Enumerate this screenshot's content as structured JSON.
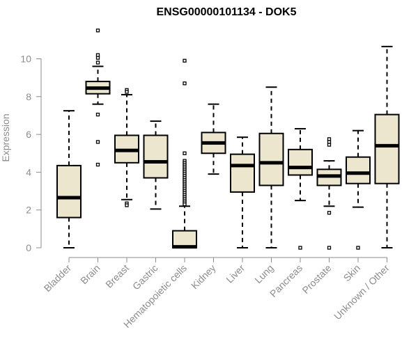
{
  "chart_data": {
    "type": "boxplot",
    "title": "ENSG00000101134 - DOK5",
    "xlabel": "",
    "ylabel": "Expression",
    "ylim": [
      0,
      11.5
    ],
    "yticks": [
      0,
      2,
      4,
      6,
      8,
      10
    ],
    "grid": false,
    "colors": {
      "box_fill": "#ede6cf",
      "box_stroke": "#000000",
      "axis": "#8c8c8c"
    },
    "categories": [
      "Bladder",
      "Brain",
      "Breast",
      "Gastric",
      "Hematopoietic cells",
      "Kidney",
      "Liver",
      "Lung",
      "Pancreas",
      "Prostate",
      "Skin",
      "Unknown / Other"
    ],
    "boxes": [
      {
        "category": "Bladder",
        "whislo": 0.0,
        "q1": 1.6,
        "median": 2.65,
        "q3": 4.35,
        "whishi": 7.25,
        "fliers": []
      },
      {
        "category": "Brain",
        "whislo": 7.6,
        "q1": 8.15,
        "median": 8.45,
        "q3": 8.8,
        "whishi": 9.6,
        "fliers": [
          11.5,
          10.2,
          10.05,
          9.8,
          7.05,
          5.6,
          4.4
        ]
      },
      {
        "category": "Breast",
        "whislo": 2.55,
        "q1": 4.5,
        "median": 5.15,
        "q3": 5.95,
        "whishi": 8.1,
        "fliers": [
          8.35,
          8.25,
          2.35,
          2.25
        ]
      },
      {
        "category": "Gastric",
        "whislo": 2.05,
        "q1": 3.7,
        "median": 4.55,
        "q3": 5.95,
        "whishi": 6.7,
        "fliers": []
      },
      {
        "category": "Hematopoietic cells",
        "whislo": 0.0,
        "q1": 0.0,
        "median": 0.05,
        "q3": 0.9,
        "whishi": 2.2,
        "fliers": [
          9.9,
          8.7,
          5.0,
          4.6,
          4.5,
          4.4,
          4.3,
          4.2,
          4.1,
          4.0,
          3.9,
          3.8,
          3.7,
          3.6,
          3.5,
          3.4,
          3.3,
          3.2,
          3.1,
          3.0,
          2.9,
          2.8,
          2.7,
          2.6,
          2.5,
          2.4,
          2.3
        ]
      },
      {
        "category": "Kidney",
        "whislo": 3.9,
        "q1": 5.0,
        "median": 5.55,
        "q3": 6.1,
        "whishi": 7.6,
        "fliers": []
      },
      {
        "category": "Liver",
        "whislo": 0.0,
        "q1": 2.95,
        "median": 4.35,
        "q3": 4.95,
        "whishi": 5.85,
        "fliers": []
      },
      {
        "category": "Lung",
        "whislo": 0.0,
        "q1": 3.3,
        "median": 4.5,
        "q3": 6.05,
        "whishi": 8.5,
        "fliers": []
      },
      {
        "category": "Pancreas",
        "whislo": 2.5,
        "q1": 3.85,
        "median": 4.25,
        "q3": 5.2,
        "whishi": 6.3,
        "fliers": [
          0.0
        ]
      },
      {
        "category": "Prostate",
        "whislo": 2.2,
        "q1": 3.3,
        "median": 3.8,
        "q3": 4.15,
        "whishi": 4.6,
        "fliers": [
          5.75,
          5.6,
          5.45,
          1.85,
          0.0
        ]
      },
      {
        "category": "Skin",
        "whislo": 2.15,
        "q1": 3.4,
        "median": 3.95,
        "q3": 4.8,
        "whishi": 6.2,
        "fliers": [
          0.0
        ]
      },
      {
        "category": "Unknown / Other",
        "whislo": 0.0,
        "q1": 3.4,
        "median": 5.4,
        "q3": 7.05,
        "whishi": 10.65,
        "fliers": []
      }
    ]
  }
}
